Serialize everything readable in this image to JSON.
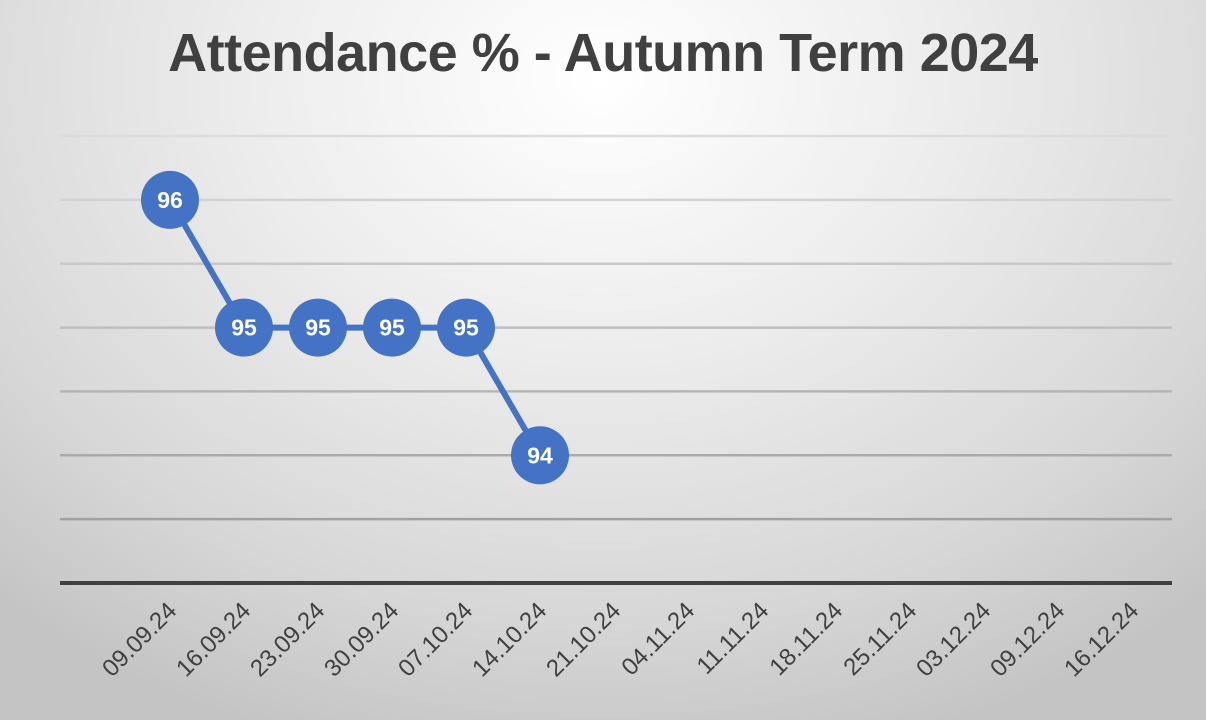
{
  "chart_data": {
    "type": "line",
    "title": "Attendance % - Autumn Term 2024",
    "xlabel": "",
    "ylabel": "",
    "categories": [
      "09.09.24",
      "16.09.24",
      "23.09.24",
      "30.09.24",
      "07.10.24",
      "14.10.24",
      "21.10.24",
      "04.11.24",
      "11.11.24",
      "18.11.24",
      "25.11.24",
      "03.12.24",
      "09.12.24",
      "16.12.24"
    ],
    "series": [
      {
        "name": "Attendance %",
        "values": [
          96,
          95,
          95,
          95,
          95,
          94,
          null,
          null,
          null,
          null,
          null,
          null,
          null,
          null
        ],
        "color": "#4472C4"
      }
    ],
    "ylim": [
      93,
      96.5
    ],
    "grid_step": 0.5,
    "grid": true,
    "y_tick_labels_visible": false,
    "data_labels": true,
    "legend": "none"
  }
}
